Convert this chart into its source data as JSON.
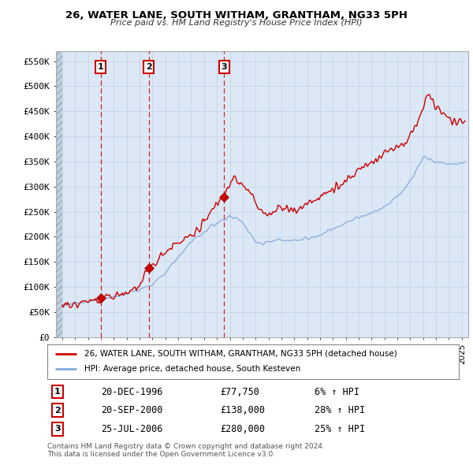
{
  "title": "26, WATER LANE, SOUTH WITHAM, GRANTHAM, NG33 5PH",
  "subtitle": "Price paid vs. HM Land Registry's House Price Index (HPI)",
  "ylabel_ticks": [
    "£0",
    "£50K",
    "£100K",
    "£150K",
    "£200K",
    "£250K",
    "£300K",
    "£350K",
    "£400K",
    "£450K",
    "£500K",
    "£550K"
  ],
  "ytick_values": [
    0,
    50000,
    100000,
    150000,
    200000,
    250000,
    300000,
    350000,
    400000,
    450000,
    500000,
    550000
  ],
  "xmin": 1993.5,
  "xmax": 2025.5,
  "ymin": 0,
  "ymax": 570000,
  "property_color": "#cc0000",
  "hpi_color": "#88aadd",
  "vline_color": "#cc0000",
  "grid_color": "#c8d8e8",
  "bg_color": "#ffffff",
  "plot_bg_color": "#dce8f5",
  "hatch_color": "#c0c8d0",
  "sales": [
    {
      "date_num": 1996.97,
      "price": 77750,
      "label": "1"
    },
    {
      "date_num": 2000.72,
      "price": 138000,
      "label": "2"
    },
    {
      "date_num": 2006.56,
      "price": 280000,
      "label": "3"
    }
  ],
  "legend_property": "26, WATER LANE, SOUTH WITHAM, GRANTHAM, NG33 5PH (detached house)",
  "legend_hpi": "HPI: Average price, detached house, South Kesteven",
  "table_rows": [
    {
      "num": "1",
      "date": "20-DEC-1996",
      "price": "£77,750",
      "change": "6% ↑ HPI"
    },
    {
      "num": "2",
      "date": "20-SEP-2000",
      "price": "£138,000",
      "change": "28% ↑ HPI"
    },
    {
      "num": "3",
      "date": "25-JUL-2006",
      "price": "£280,000",
      "change": "25% ↑ HPI"
    }
  ],
  "footnote1": "Contains HM Land Registry data © Crown copyright and database right 2024.",
  "footnote2": "This data is licensed under the Open Government Licence v3.0."
}
